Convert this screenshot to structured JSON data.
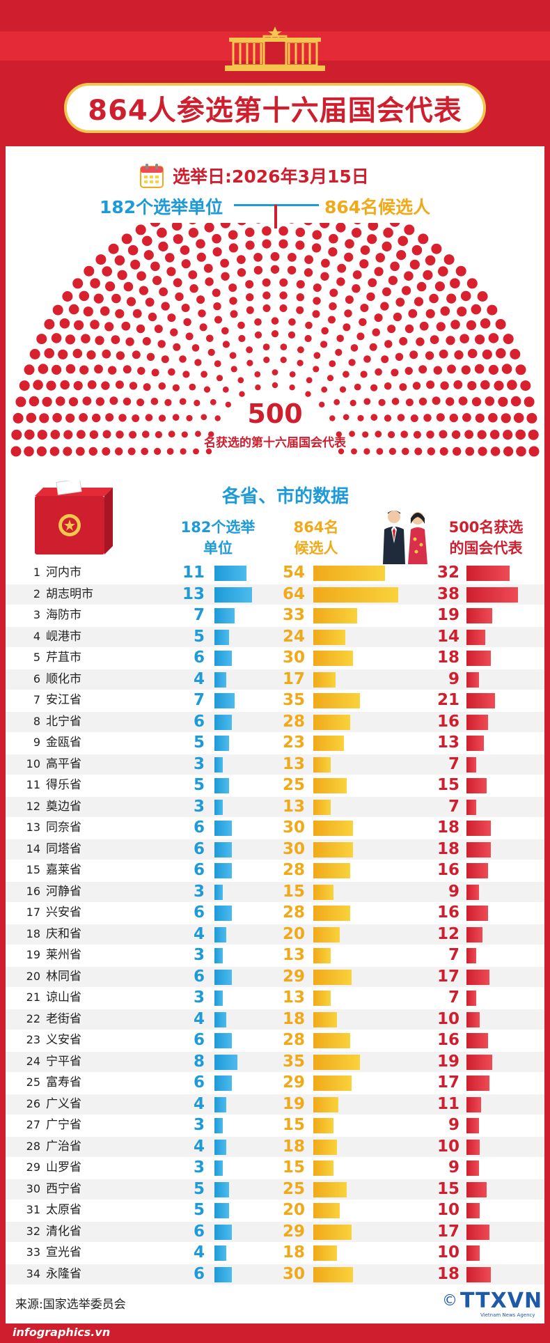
{
  "title": "864人参选第十六届国会代表",
  "election": {
    "date_label": "选举日:2026年3月15日"
  },
  "summary": {
    "units_label": "182个选举单位",
    "candidates_label": "864名候选人"
  },
  "seats_center": {
    "number": "500",
    "caption": "名获选的第十六届国会代表"
  },
  "section_title": "各省、市的数据",
  "col_headers": {
    "units": [
      "182个选举",
      "单位"
    ],
    "candidates": [
      "864名",
      "候选人"
    ],
    "deputies": [
      "500名获选",
      "的国会代表"
    ]
  },
  "colors": {
    "red": "#cf1f2e",
    "blue": "#1d9ad8",
    "yellow": "#f0a919",
    "gold": "#f3c74d"
  },
  "icons": [
    "parliament-icon",
    "calendar-icon",
    "ballot-box-icon",
    "delegates-illustration",
    "copyright-icon"
  ],
  "chart_data": {
    "type": "bar",
    "categories": [
      "河内市",
      "胡志明市",
      "海防市",
      "岘港市",
      "芹苴市",
      "顺化市",
      "安江省",
      "北宁省",
      "金瓯省",
      "高平省",
      "得乐省",
      "奠边省",
      "同奈省",
      "同塔省",
      "嘉莱省",
      "河静省",
      "兴安省",
      "庆和省",
      "莱州省",
      "林同省",
      "谅山省",
      "老街省",
      "义安省",
      "宁平省",
      "富寿省",
      "广义省",
      "广宁省",
      "广治省",
      "山罗省",
      "西宁省",
      "太原省",
      "清化省",
      "宣光省",
      "永隆省"
    ],
    "index_labels": [
      "1",
      "2",
      "3",
      "4",
      "5",
      "6",
      "7",
      "8",
      "9",
      "10",
      "11",
      "12",
      "13",
      "14",
      "15",
      "16",
      "17",
      "18",
      "19",
      "20",
      "21",
      "22",
      "23",
      "24",
      "25",
      "26",
      "27",
      "28",
      "29",
      "30",
      "31",
      "32",
      "33",
      "34"
    ],
    "series": [
      {
        "name": "182个选举单位",
        "values": [
          11,
          13,
          7,
          5,
          6,
          4,
          7,
          6,
          5,
          3,
          5,
          3,
          6,
          6,
          6,
          3,
          6,
          4,
          3,
          6,
          3,
          4,
          6,
          8,
          6,
          4,
          3,
          4,
          3,
          5,
          5,
          6,
          4,
          6
        ]
      },
      {
        "name": "864名候选人",
        "values": [
          54,
          64,
          33,
          24,
          30,
          17,
          35,
          28,
          23,
          13,
          25,
          13,
          30,
          30,
          28,
          15,
          28,
          20,
          13,
          29,
          13,
          18,
          28,
          35,
          29,
          19,
          15,
          18,
          15,
          25,
          20,
          29,
          18,
          30
        ]
      },
      {
        "name": "500名获选的国会代表",
        "values": [
          32,
          38,
          19,
          14,
          18,
          9,
          21,
          16,
          13,
          7,
          15,
          7,
          18,
          18,
          16,
          9,
          16,
          12,
          7,
          17,
          7,
          10,
          16,
          19,
          17,
          11,
          9,
          10,
          9,
          15,
          10,
          17,
          10,
          18
        ]
      }
    ],
    "seat_chart": {
      "type": "hemicycle",
      "seats": 500
    }
  },
  "footer": {
    "source": "来源:国家选举委员会",
    "website": "infographics.vn",
    "copyright_symbol": "©",
    "brand": "TTXVN",
    "brand_sub": "Vietnam News Agency"
  }
}
